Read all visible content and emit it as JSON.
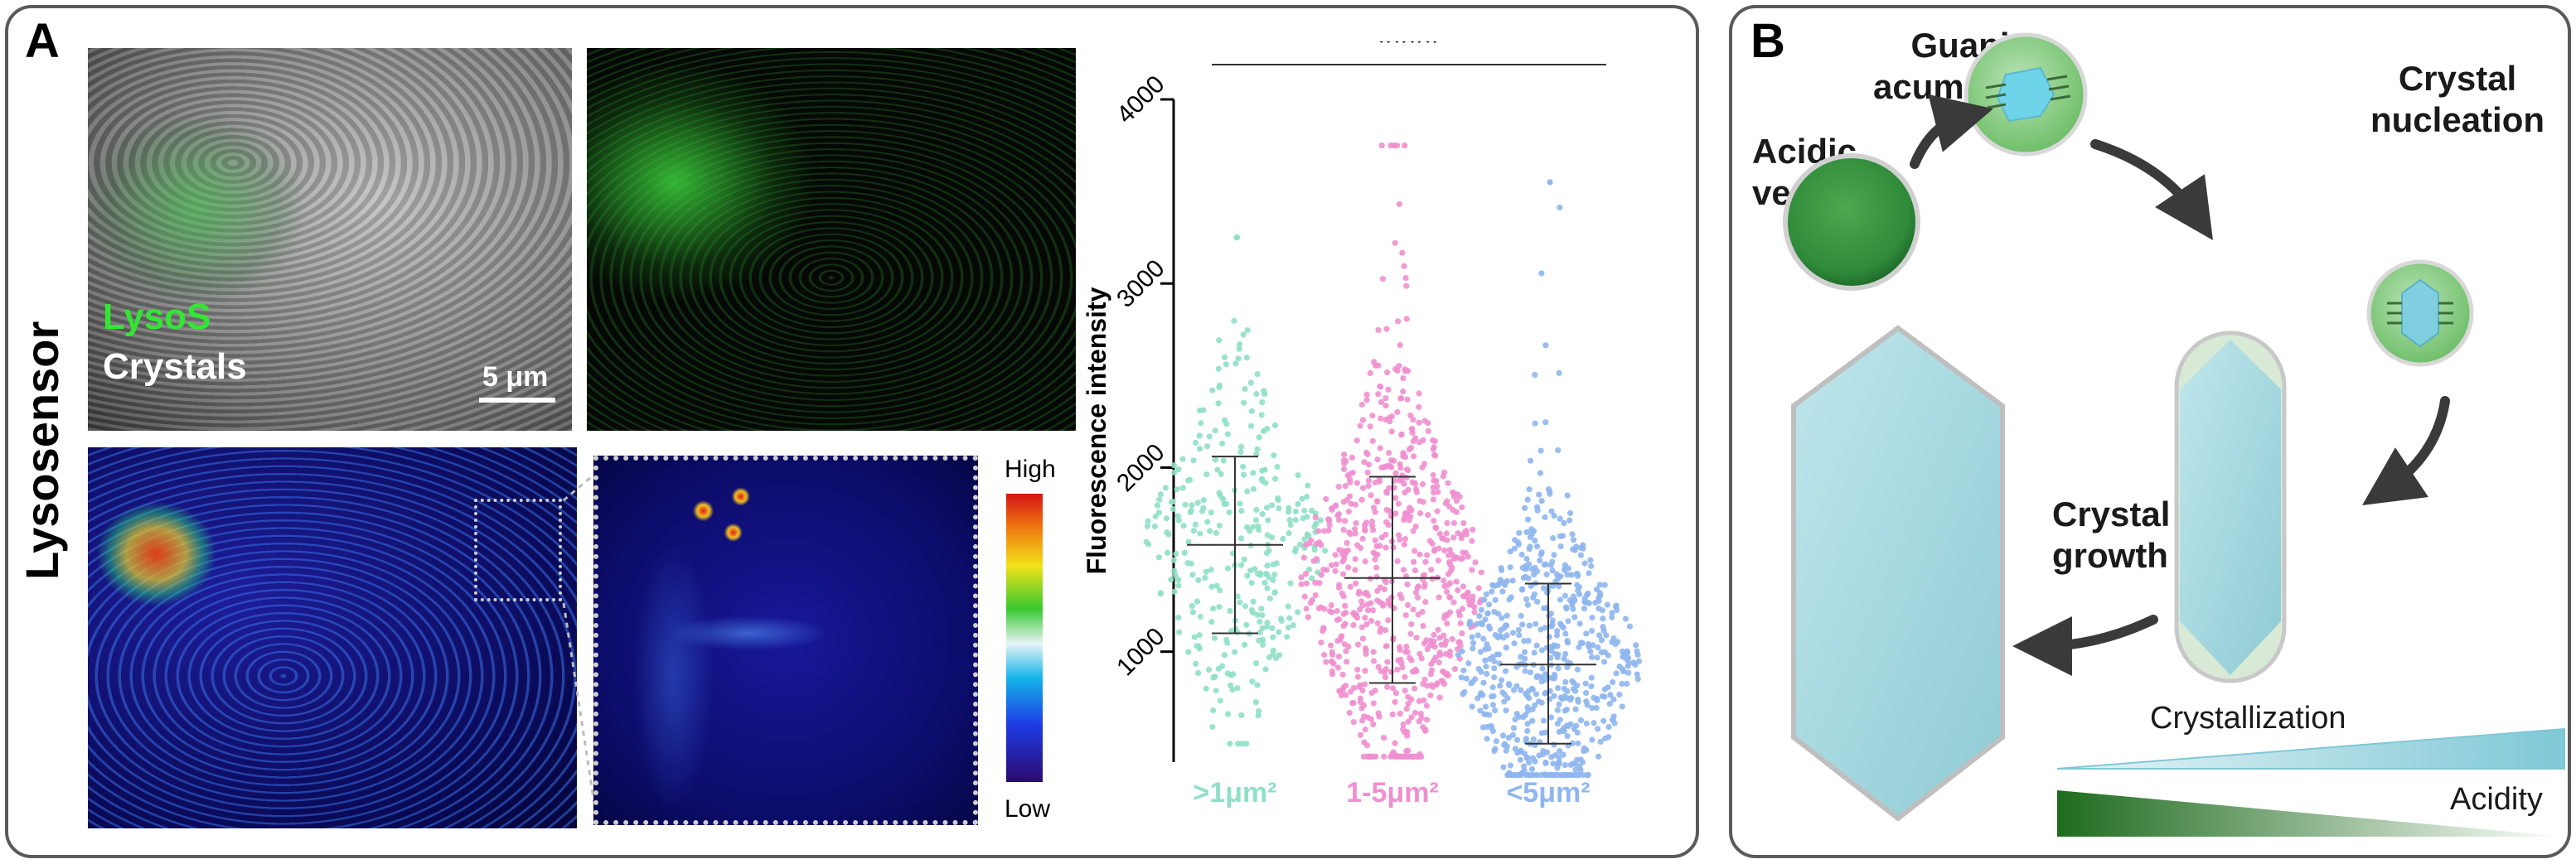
{
  "panel_a": {
    "label": "A",
    "row_label": "Lysosensor",
    "legend_lysos": "LysoS",
    "legend_crystals": "Crystals",
    "scale_bar": "5 μm",
    "colorbar_high": "High",
    "colorbar_low": "Low"
  },
  "panel_b": {
    "label": "B",
    "acidic_vesicle": "Acidic vesicle",
    "acidic_vesicle_l1": "Acidic",
    "acidic_vesicle_l2": "vesicle",
    "guanine_l1": "Guanine",
    "guanine_l2": "acumullation",
    "nucleation_l1": "Crystal",
    "nucleation_l2": "nucleation",
    "growth_l1": "Crystal",
    "growth_l2": "growth",
    "crystallization": "Crystallization",
    "acidity": "Acidity",
    "colors": {
      "vesicle_green": "#2f8a3a",
      "crystal_blue": "#9fd3da",
      "gradient_green": "#1e6b1e"
    }
  },
  "chart_data": {
    "type": "scatter",
    "title": "",
    "significance": "****",
    "xlabel": "",
    "ylabel": "Fluorescence intensity",
    "categories": [
      ">1μm²",
      "1-5μm²",
      "<5μm²"
    ],
    "yticks": [
      1000,
      2000,
      3000,
      4000
    ],
    "ylim": [
      400,
      4000
    ],
    "series": [
      {
        "category": ">1μm²",
        "color": "#8fe0c4",
        "mean": 1580,
        "sd_low": 1100,
        "sd_high": 2060,
        "max": 3250,
        "min": 500,
        "n": 320
      },
      {
        "category": "1-5μm²",
        "color": "#f08fcf",
        "mean": 1400,
        "sd_low": 830,
        "sd_high": 1950,
        "max": 3750,
        "min": 430,
        "n": 700
      },
      {
        "category": "<5μm²",
        "color": "#8fb6ee",
        "mean": 930,
        "sd_low": 500,
        "sd_high": 1370,
        "max": 3550,
        "min": 330,
        "n": 620
      }
    ]
  }
}
